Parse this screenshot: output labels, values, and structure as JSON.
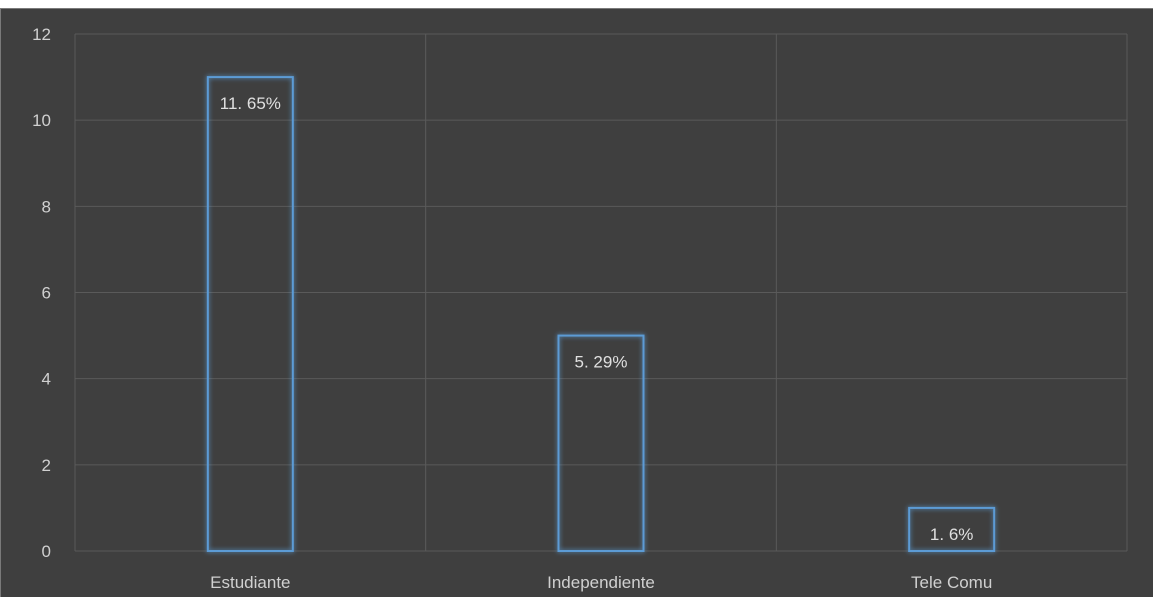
{
  "chart_data": {
    "type": "bar",
    "categories": [
      "Estudiante",
      "Independiente",
      "Tele Comu"
    ],
    "values": [
      11,
      5,
      1
    ],
    "data_labels": [
      "11. 65%",
      "5. 29%",
      "1. 6%"
    ],
    "ylim": [
      0,
      12
    ],
    "yticks": [
      0,
      2,
      4,
      6,
      8,
      10,
      12
    ],
    "grid": true,
    "colors": {
      "background": "#3f3f3f",
      "bar_outline": "#5b9bd5",
      "grid": "#5a5a5a",
      "text": "#d0d0d0"
    }
  }
}
